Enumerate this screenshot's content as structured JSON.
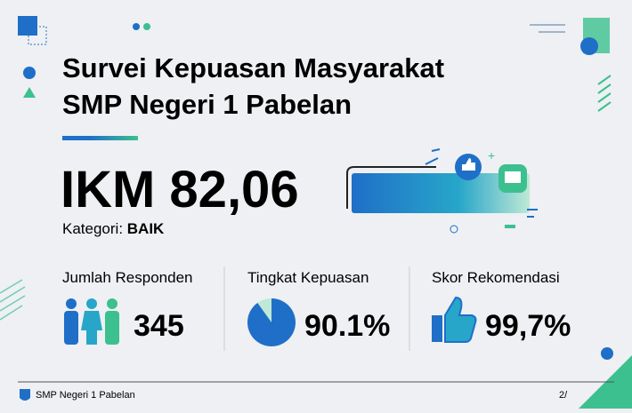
{
  "header": {
    "title_line1": "Survei Kepuasan Masyarakat",
    "title_line2": "SMP Negeri 1 Pabelan"
  },
  "index": {
    "text": "IKM 82,06",
    "category_label": "Kategori:",
    "category": "BAIK"
  },
  "stats": [
    {
      "label": "Jumlah Responden",
      "value": "345"
    },
    {
      "label": "Tingkat Kepuasan",
      "value": 90.1,
      "value_label": "90.1%"
    },
    {
      "label": "Skor Rekomendasi",
      "value": "99,7%"
    }
  ],
  "footer": {
    "school": "SMP Negeri 1 Pabelan",
    "page": "2/"
  }
}
